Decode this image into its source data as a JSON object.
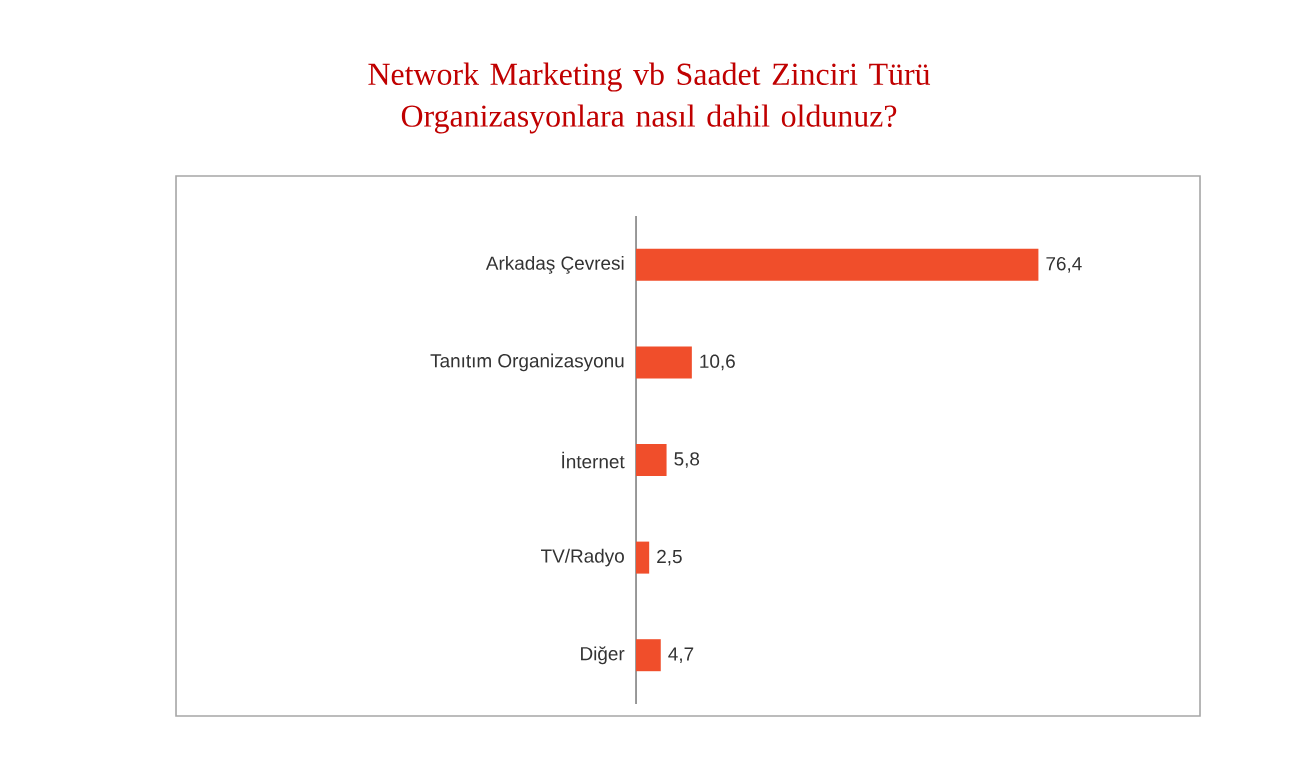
{
  "chart_data": {
    "type": "bar",
    "orientation": "horizontal",
    "title": "Network Marketing vb Saadet Zinciri Türü Organizasyonlara nasıl dahil oldunuz?",
    "categories": [
      "Arkadaş Çevresi",
      "Tanıtım Organizasyonu",
      "İnternet",
      "TV/Radyo",
      "Diğer"
    ],
    "values": [
      76.4,
      10.6,
      5.8,
      2.5,
      4.7
    ],
    "value_labels": [
      "76,4",
      "10,6",
      "5,8",
      "2,5",
      "4,7"
    ],
    "color": "#f04e2b"
  }
}
